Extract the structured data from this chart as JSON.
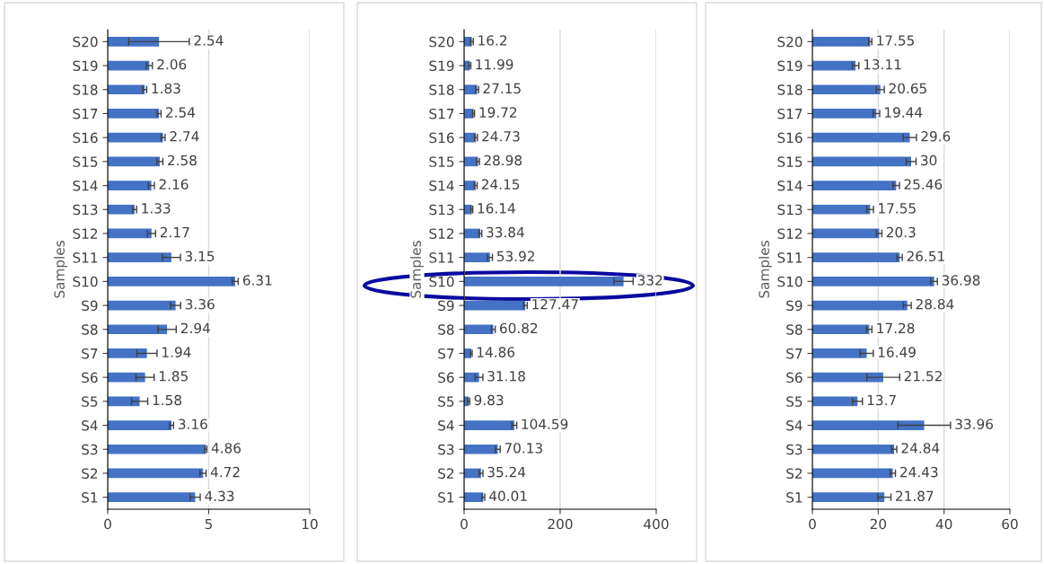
{
  "chart_data": [
    {
      "type": "bar",
      "orientation": "horizontal",
      "ylabel": "Samples",
      "categories": [
        "S20",
        "S19",
        "S18",
        "S17",
        "S16",
        "S15",
        "S14",
        "S13",
        "S12",
        "S11",
        "S10",
        "S9",
        "S8",
        "S7",
        "S6",
        "S5",
        "S4",
        "S3",
        "S2",
        "S1"
      ],
      "values": [
        2.54,
        2.06,
        1.83,
        2.54,
        2.74,
        2.58,
        2.16,
        1.33,
        2.17,
        3.15,
        6.31,
        3.36,
        2.94,
        1.94,
        1.85,
        1.58,
        3.16,
        4.86,
        4.72,
        4.33
      ],
      "errors": [
        1.5,
        0.15,
        0.1,
        0.1,
        0.1,
        0.15,
        0.15,
        0.1,
        0.2,
        0.45,
        0.15,
        0.25,
        0.45,
        0.5,
        0.45,
        0.4,
        0.1,
        0.05,
        0.15,
        0.25
      ],
      "color": "#4472c4",
      "xlim": [
        0,
        10
      ],
      "xticks": [
        0,
        5,
        10
      ],
      "grid": "x",
      "data_labels": true
    },
    {
      "type": "bar",
      "orientation": "horizontal",
      "ylabel": "Samples",
      "categories": [
        "S20",
        "S19",
        "S18",
        "S17",
        "S16",
        "S15",
        "S14",
        "S13",
        "S12",
        "S11",
        "S10",
        "S9",
        "S8",
        "S7",
        "S6",
        "S5",
        "S4",
        "S3",
        "S2",
        "S1"
      ],
      "values": [
        16.2,
        11.99,
        27.15,
        19.72,
        24.73,
        28.98,
        24.15,
        16.14,
        33.84,
        53.92,
        332,
        127.47,
        60.82,
        14.86,
        31.18,
        9.83,
        104.59,
        70.13,
        35.24,
        40.01
      ],
      "errors": [
        3,
        2,
        3,
        2,
        3,
        3,
        3,
        2,
        3,
        5,
        20,
        4,
        4,
        2,
        8,
        2,
        5,
        5,
        4,
        3
      ],
      "color": "#4472c4",
      "xlim": [
        0,
        400
      ],
      "xticks": [
        0,
        200,
        400
      ],
      "grid": "x",
      "data_labels": true
    },
    {
      "type": "bar",
      "orientation": "horizontal",
      "ylabel": "Samples",
      "categories": [
        "S20",
        "S19",
        "S18",
        "S17",
        "S16",
        "S15",
        "S14",
        "S13",
        "S12",
        "S11",
        "S10",
        "S9",
        "S8",
        "S7",
        "S6",
        "S5",
        "S4",
        "S3",
        "S2",
        "S1"
      ],
      "values": [
        17.55,
        13.11,
        20.65,
        19.44,
        29.6,
        30,
        25.46,
        17.55,
        20.3,
        26.51,
        36.98,
        28.84,
        17.28,
        16.49,
        21.52,
        13.7,
        33.96,
        24.84,
        24.43,
        21.87
      ],
      "errors": [
        0.5,
        1,
        1.2,
        1,
        2,
        1.5,
        1,
        1,
        0.8,
        0.8,
        1,
        1.2,
        0.8,
        2,
        5,
        1.5,
        8,
        0.8,
        0.8,
        2
      ],
      "color": "#4472c4",
      "xlim": [
        0,
        60
      ],
      "xticks": [
        0,
        20,
        40,
        60
      ],
      "grid": "x",
      "data_labels": true
    }
  ]
}
